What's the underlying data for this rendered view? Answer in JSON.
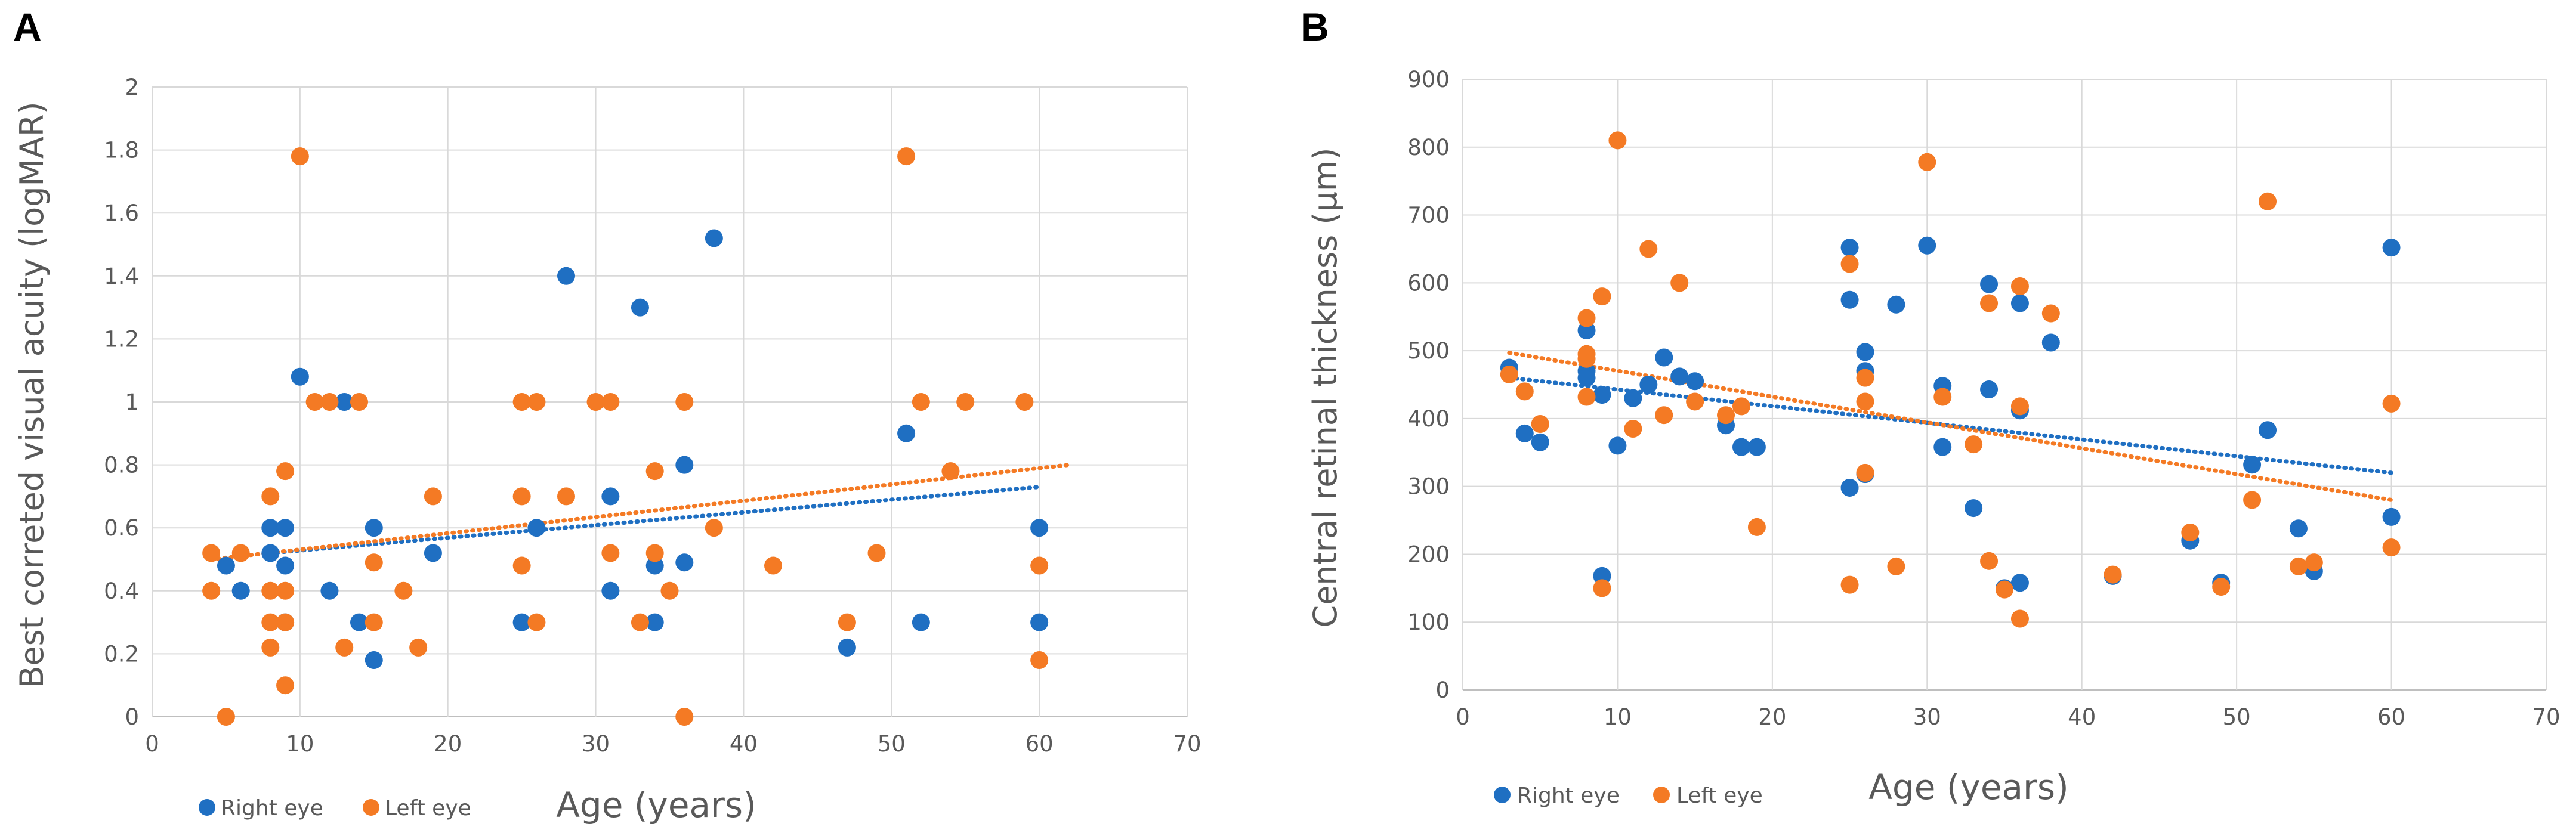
{
  "colors": {
    "right_eye": "#1f6fc2",
    "left_eye": "#f47a24",
    "grid": "#d9d9d9",
    "axis_text": "#595959"
  },
  "chart_data": [
    {
      "panel": "A",
      "type": "scatter",
      "title": "",
      "xlabel": "Age (years)",
      "ylabel": "Best correted visual acuity (logMAR)",
      "xlim": [
        0,
        70
      ],
      "ylim": [
        0,
        2
      ],
      "xticks": [
        0,
        10,
        20,
        30,
        40,
        50,
        60,
        70
      ],
      "yticks": [
        0,
        0.2,
        0.4,
        0.6,
        0.8,
        1,
        1.2,
        1.4,
        1.6,
        1.8,
        2
      ],
      "ytick_labels": [
        "0",
        "0.2",
        "0.4",
        "0.6",
        "0.8",
        "1",
        "1.2",
        "1.4",
        "1.6",
        "1.8",
        "2"
      ],
      "grid": true,
      "legend_position": "bottom-left",
      "series": [
        {
          "name": "Right eye",
          "color": "#1f6fc2",
          "points": [
            [
              5,
              0.48
            ],
            [
              6,
              0.4
            ],
            [
              8,
              0.6
            ],
            [
              8,
              0.52
            ],
            [
              9,
              0.6
            ],
            [
              9,
              0.48
            ],
            [
              9,
              0.3
            ],
            [
              10,
              1.08
            ],
            [
              12,
              0.4
            ],
            [
              13,
              1.0
            ],
            [
              14,
              0.3
            ],
            [
              15,
              0.6
            ],
            [
              15,
              0.18
            ],
            [
              19,
              0.52
            ],
            [
              25,
              0.3
            ],
            [
              26,
              0.6
            ],
            [
              28,
              1.4
            ],
            [
              31,
              0.7
            ],
            [
              31,
              0.4
            ],
            [
              33,
              1.3
            ],
            [
              34,
              0.48
            ],
            [
              34,
              0.3
            ],
            [
              36,
              0.8
            ],
            [
              36,
              0.49
            ],
            [
              38,
              1.52
            ],
            [
              47,
              0.22
            ],
            [
              51,
              0.9
            ],
            [
              52,
              0.3
            ],
            [
              60,
              0.6
            ],
            [
              60,
              0.3
            ]
          ],
          "trend": [
            [
              8,
              0.52
            ],
            [
              60,
              0.73
            ]
          ]
        },
        {
          "name": "Left eye",
          "color": "#f47a24",
          "points": [
            [
              4,
              0.52
            ],
            [
              4,
              0.4
            ],
            [
              5,
              0.0
            ],
            [
              6,
              0.52
            ],
            [
              8,
              0.7
            ],
            [
              8,
              0.4
            ],
            [
              8,
              0.3
            ],
            [
              8,
              0.22
            ],
            [
              9,
              0.78
            ],
            [
              9,
              0.4
            ],
            [
              9,
              0.3
            ],
            [
              9,
              0.1
            ],
            [
              10,
              1.78
            ],
            [
              11,
              1.0
            ],
            [
              12,
              1.0
            ],
            [
              13,
              0.22
            ],
            [
              14,
              1.0
            ],
            [
              15,
              0.49
            ],
            [
              15,
              0.3
            ],
            [
              17,
              0.4
            ],
            [
              18,
              0.22
            ],
            [
              19,
              0.7
            ],
            [
              25,
              1.0
            ],
            [
              25,
              0.7
            ],
            [
              25,
              0.48
            ],
            [
              26,
              1.0
            ],
            [
              26,
              0.3
            ],
            [
              28,
              0.7
            ],
            [
              30,
              1.0
            ],
            [
              31,
              1.0
            ],
            [
              31,
              0.52
            ],
            [
              33,
              0.3
            ],
            [
              34,
              0.78
            ],
            [
              34,
              0.52
            ],
            [
              35,
              0.4
            ],
            [
              36,
              1.0
            ],
            [
              36,
              0.0
            ],
            [
              38,
              0.6
            ],
            [
              42,
              0.48
            ],
            [
              47,
              0.3
            ],
            [
              49,
              0.52
            ],
            [
              51,
              1.78
            ],
            [
              52,
              1.0
            ],
            [
              54,
              0.78
            ],
            [
              55,
              1.0
            ],
            [
              59,
              1.0
            ],
            [
              60,
              0.48
            ],
            [
              60,
              0.18
            ]
          ],
          "trend": [
            [
              4,
              0.5
            ],
            [
              62,
              0.8
            ]
          ]
        }
      ]
    },
    {
      "panel": "B",
      "type": "scatter",
      "title": "",
      "xlabel": "Age (years)",
      "ylabel": "Central retinal thickness (μm)",
      "xlim": [
        0,
        70
      ],
      "ylim": [
        0,
        900
      ],
      "xticks": [
        0,
        10,
        20,
        30,
        40,
        50,
        60,
        70
      ],
      "yticks": [
        0,
        100,
        200,
        300,
        400,
        500,
        600,
        700,
        800,
        900
      ],
      "ytick_labels": [
        "0",
        "100",
        "200",
        "300",
        "400",
        "500",
        "600",
        "700",
        "800",
        "900"
      ],
      "grid": true,
      "legend_position": "bottom-left",
      "series": [
        {
          "name": "Right eye",
          "color": "#1f6fc2",
          "points": [
            [
              3,
              475
            ],
            [
              4,
              378
            ],
            [
              5,
              365
            ],
            [
              8,
              530
            ],
            [
              8,
              470
            ],
            [
              8,
              460
            ],
            [
              9,
              435
            ],
            [
              9,
              168
            ],
            [
              10,
              360
            ],
            [
              11,
              430
            ],
            [
              12,
              450
            ],
            [
              13,
              490
            ],
            [
              14,
              462
            ],
            [
              15,
              455
            ],
            [
              17,
              390
            ],
            [
              18,
              358
            ],
            [
              19,
              358
            ],
            [
              25,
              652
            ],
            [
              25,
              575
            ],
            [
              25,
              298
            ],
            [
              26,
              498
            ],
            [
              26,
              470
            ],
            [
              26,
              318
            ],
            [
              28,
              568
            ],
            [
              30,
              655
            ],
            [
              31,
              448
            ],
            [
              31,
              358
            ],
            [
              33,
              268
            ],
            [
              34,
              598
            ],
            [
              34,
              443
            ],
            [
              35,
              150
            ],
            [
              36,
              570
            ],
            [
              36,
              412
            ],
            [
              36,
              158
            ],
            [
              38,
              512
            ],
            [
              42,
              168
            ],
            [
              47,
              220
            ],
            [
              49,
              158
            ],
            [
              51,
              332
            ],
            [
              52,
              383
            ],
            [
              54,
              238
            ],
            [
              55,
              175
            ],
            [
              60,
              652
            ],
            [
              60,
              255
            ]
          ],
          "trend": [
            [
              3,
              460
            ],
            [
              60,
              320
            ]
          ]
        },
        {
          "name": "Left eye",
          "color": "#f47a24",
          "points": [
            [
              3,
              465
            ],
            [
              4,
              440
            ],
            [
              5,
              392
            ],
            [
              8,
              548
            ],
            [
              8,
              495
            ],
            [
              8,
              488
            ],
            [
              8,
              432
            ],
            [
              9,
              580
            ],
            [
              9,
              150
            ],
            [
              10,
              810
            ],
            [
              11,
              385
            ],
            [
              12,
              650
            ],
            [
              13,
              405
            ],
            [
              14,
              600
            ],
            [
              15,
              425
            ],
            [
              17,
              405
            ],
            [
              18,
              418
            ],
            [
              19,
              240
            ],
            [
              25,
              628
            ],
            [
              25,
              155
            ],
            [
              26,
              460
            ],
            [
              26,
              425
            ],
            [
              26,
              320
            ],
            [
              28,
              182
            ],
            [
              30,
              778
            ],
            [
              31,
              432
            ],
            [
              33,
              362
            ],
            [
              34,
              570
            ],
            [
              34,
              190
            ],
            [
              35,
              148
            ],
            [
              36,
              595
            ],
            [
              36,
              418
            ],
            [
              36,
              105
            ],
            [
              38,
              555
            ],
            [
              42,
              170
            ],
            [
              47,
              232
            ],
            [
              49,
              152
            ],
            [
              51,
              280
            ],
            [
              52,
              720
            ],
            [
              54,
              182
            ],
            [
              55,
              188
            ],
            [
              60,
              422
            ],
            [
              60,
              210
            ]
          ],
          "trend": [
            [
              3,
              497
            ],
            [
              60,
              280
            ]
          ]
        }
      ]
    }
  ]
}
